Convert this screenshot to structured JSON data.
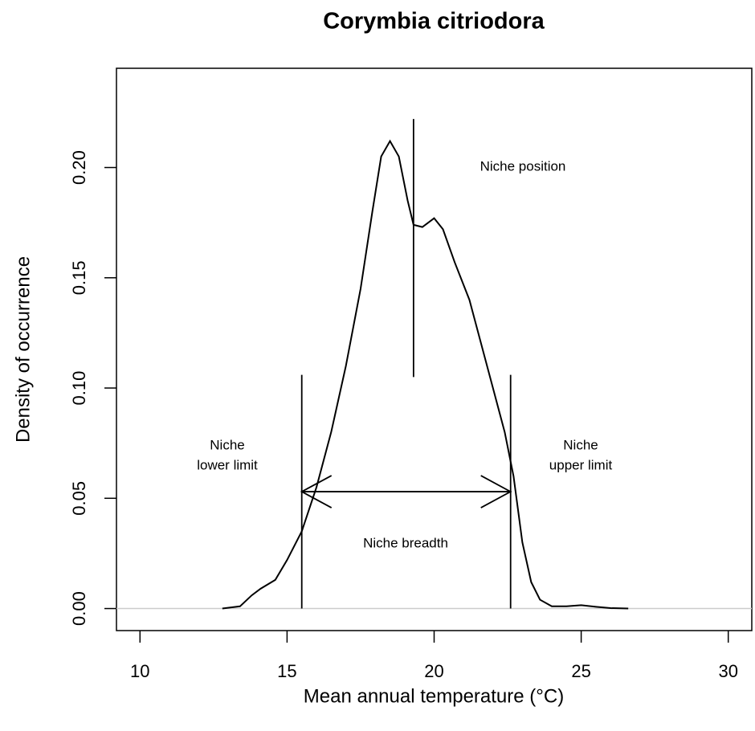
{
  "chart_data": {
    "type": "line",
    "title": "Corymbia citriodora",
    "xlabel": "Mean annual temperature (°C)",
    "ylabel": "Density of occurrence",
    "x": [
      12.8,
      13.4,
      13.8,
      14.1,
      14.6,
      15.0,
      15.5,
      16.0,
      16.5,
      17.0,
      17.5,
      17.9,
      18.2,
      18.5,
      18.8,
      19.1,
      19.3,
      19.6,
      20.0,
      20.3,
      20.7,
      21.2,
      21.6,
      22.0,
      22.4,
      22.7,
      23.0,
      23.3,
      23.6,
      24.0,
      24.5,
      25.0,
      25.5,
      26.0,
      26.6
    ],
    "values": [
      0.0,
      0.001,
      0.006,
      0.009,
      0.013,
      0.022,
      0.035,
      0.055,
      0.08,
      0.11,
      0.145,
      0.18,
      0.205,
      0.212,
      0.205,
      0.185,
      0.174,
      0.173,
      0.177,
      0.172,
      0.157,
      0.14,
      0.12,
      0.1,
      0.08,
      0.06,
      0.03,
      0.012,
      0.004,
      0.001,
      0.001,
      0.0015,
      0.0008,
      0.0002,
      0.0
    ],
    "color": "#000000",
    "xlim": [
      9.2,
      30.8
    ],
    "ylim": [
      -0.01,
      0.245
    ],
    "xticks": [
      10,
      15,
      20,
      25,
      30
    ],
    "yticks": [
      {
        "value": 0,
        "label": "0.00"
      },
      {
        "value": 0.05,
        "label": "0.05"
      },
      {
        "value": 0.1,
        "label": "0.10"
      },
      {
        "value": 0.15,
        "label": "0.15"
      },
      {
        "value": 0.2,
        "label": "0.20"
      }
    ],
    "markers": {
      "niche_position": 19.3,
      "lower_limit": 15.5,
      "upper_limit": 22.6
    },
    "annotations": {
      "position": [
        "Niche position"
      ],
      "lower": [
        "Niche",
        "lower limit"
      ],
      "upper": [
        "Niche",
        "upper limit"
      ],
      "breadth": [
        "Niche breadth"
      ]
    }
  }
}
